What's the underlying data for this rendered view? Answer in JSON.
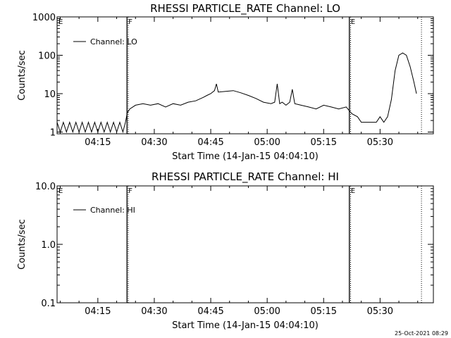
{
  "chart_data": [
    {
      "type": "line",
      "title": "RHESSI PARTICLE_RATE Channel: LO",
      "xlabel": "Start Time (14-Jan-15 04:04:10)",
      "ylabel": "Counts/sec",
      "y_scale": "log",
      "ylim": [
        0.9,
        1000
      ],
      "xlim": [
        "04:04:10",
        "05:44:10"
      ],
      "x_tick_labels": [
        "04:15",
        "04:30",
        "04:45",
        "05:00",
        "05:15",
        "05:30"
      ],
      "y_tick_labels": [
        "1",
        "10",
        "100",
        "1000"
      ],
      "legend": {
        "placement": "top-left",
        "entries": [
          "Channel: LO"
        ]
      },
      "flag_labels": [
        {
          "text": "E",
          "time": "04:04:10"
        },
        {
          "text": "F",
          "time": "04:22:45"
        },
        {
          "text": "E",
          "time": "05:21:50"
        }
      ],
      "vertical_lines": [
        {
          "time": "04:22:45",
          "style": "solid"
        },
        {
          "time": "04:23:05",
          "style": "dotted"
        },
        {
          "time": "05:21:50",
          "style": "solid"
        },
        {
          "time": "05:22:10",
          "style": "dotted"
        },
        {
          "time": "05:41:00",
          "style": "dotted"
        }
      ],
      "series": [
        {
          "name": "Channel: LO",
          "points": [
            [
              "04:04:10",
              1.8
            ],
            [
              "04:05:00",
              1.0
            ],
            [
              "04:05:50",
              1.8
            ],
            [
              "04:06:40",
              1.0
            ],
            [
              "04:07:30",
              1.8
            ],
            [
              "04:08:20",
              1.0
            ],
            [
              "04:09:10",
              1.8
            ],
            [
              "04:10:00",
              1.0
            ],
            [
              "04:10:50",
              1.8
            ],
            [
              "04:11:40",
              1.0
            ],
            [
              "04:12:30",
              1.8
            ],
            [
              "04:13:20",
              1.0
            ],
            [
              "04:14:10",
              1.8
            ],
            [
              "04:15:00",
              1.0
            ],
            [
              "04:15:50",
              1.8
            ],
            [
              "04:16:40",
              1.0
            ],
            [
              "04:17:30",
              1.8
            ],
            [
              "04:18:20",
              1.0
            ],
            [
              "04:19:10",
              1.8
            ],
            [
              "04:20:00",
              1.0
            ],
            [
              "04:20:50",
              1.8
            ],
            [
              "04:21:40",
              1.0
            ],
            [
              "04:22:20",
              1.8
            ],
            [
              "04:22:50",
              3.2
            ],
            [
              "04:23:30",
              4.0
            ],
            [
              "04:25:00",
              5.0
            ],
            [
              "04:27:00",
              5.5
            ],
            [
              "04:29:00",
              5.0
            ],
            [
              "04:31:00",
              5.5
            ],
            [
              "04:33:00",
              4.5
            ],
            [
              "04:35:00",
              5.5
            ],
            [
              "04:37:00",
              5.0
            ],
            [
              "04:39:00",
              6.0
            ],
            [
              "04:41:00",
              6.5
            ],
            [
              "04:43:00",
              8.0
            ],
            [
              "04:44:00",
              9.0
            ],
            [
              "04:45:00",
              10.0
            ],
            [
              "04:46:00",
              12.0
            ],
            [
              "04:46:30",
              18.0
            ],
            [
              "04:47:00",
              11.0
            ],
            [
              "04:49:00",
              11.5
            ],
            [
              "04:51:00",
              12.0
            ],
            [
              "04:53:00",
              10.5
            ],
            [
              "04:55:00",
              9.0
            ],
            [
              "04:57:00",
              7.5
            ],
            [
              "04:59:00",
              6.0
            ],
            [
              "05:01:00",
              5.5
            ],
            [
              "05:02:00",
              6.0
            ],
            [
              "05:02:40",
              18.0
            ],
            [
              "05:03:20",
              5.5
            ],
            [
              "05:04:00",
              6.0
            ],
            [
              "05:05:00",
              5.0
            ],
            [
              "05:06:00",
              6.0
            ],
            [
              "05:06:40",
              13.0
            ],
            [
              "05:07:20",
              5.5
            ],
            [
              "05:09:00",
              5.0
            ],
            [
              "05:11:00",
              4.5
            ],
            [
              "05:13:00",
              4.0
            ],
            [
              "05:15:00",
              5.0
            ],
            [
              "05:17:00",
              4.5
            ],
            [
              "05:19:00",
              4.0
            ],
            [
              "05:21:00",
              4.5
            ],
            [
              "05:22:30",
              3.0
            ],
            [
              "05:24:00",
              2.5
            ],
            [
              "05:25:00",
              1.8
            ],
            [
              "05:29:00",
              1.8
            ],
            [
              "05:30:00",
              2.5
            ],
            [
              "05:31:00",
              1.8
            ],
            [
              "05:32:00",
              2.5
            ],
            [
              "05:33:00",
              7.0
            ],
            [
              "05:34:00",
              40.0
            ],
            [
              "05:35:00",
              100.0
            ],
            [
              "05:36:00",
              115.0
            ],
            [
              "05:37:00",
              100.0
            ],
            [
              "05:38:00",
              50.0
            ],
            [
              "05:39:00",
              20.0
            ],
            [
              "05:39:40",
              10.0
            ]
          ]
        }
      ]
    },
    {
      "type": "line",
      "title": "RHESSI PARTICLE_RATE Channel: HI",
      "xlabel": "Start Time (14-Jan-15 04:04:10)",
      "ylabel": "Counts/sec",
      "y_scale": "log",
      "ylim": [
        0.1,
        10
      ],
      "xlim": [
        "04:04:10",
        "05:44:10"
      ],
      "x_tick_labels": [
        "04:15",
        "04:30",
        "04:45",
        "05:00",
        "05:15",
        "05:30"
      ],
      "y_tick_labels": [
        "0.1",
        "1.0",
        "10.0"
      ],
      "legend": {
        "placement": "top-left",
        "entries": [
          "Channel: HI"
        ]
      },
      "flag_labels": [
        {
          "text": "E",
          "time": "04:04:10"
        },
        {
          "text": "F",
          "time": "04:22:45"
        },
        {
          "text": "E",
          "time": "05:21:50"
        }
      ],
      "vertical_lines": [
        {
          "time": "04:22:45",
          "style": "solid"
        },
        {
          "time": "04:23:05",
          "style": "dotted"
        },
        {
          "time": "05:21:50",
          "style": "solid"
        },
        {
          "time": "05:22:10",
          "style": "dotted"
        },
        {
          "time": "05:41:00",
          "style": "dotted"
        }
      ],
      "series": [
        {
          "name": "Channel: HI",
          "points": []
        }
      ]
    }
  ],
  "footer": {
    "timestamp": "25-Oct-2021 08:29"
  }
}
